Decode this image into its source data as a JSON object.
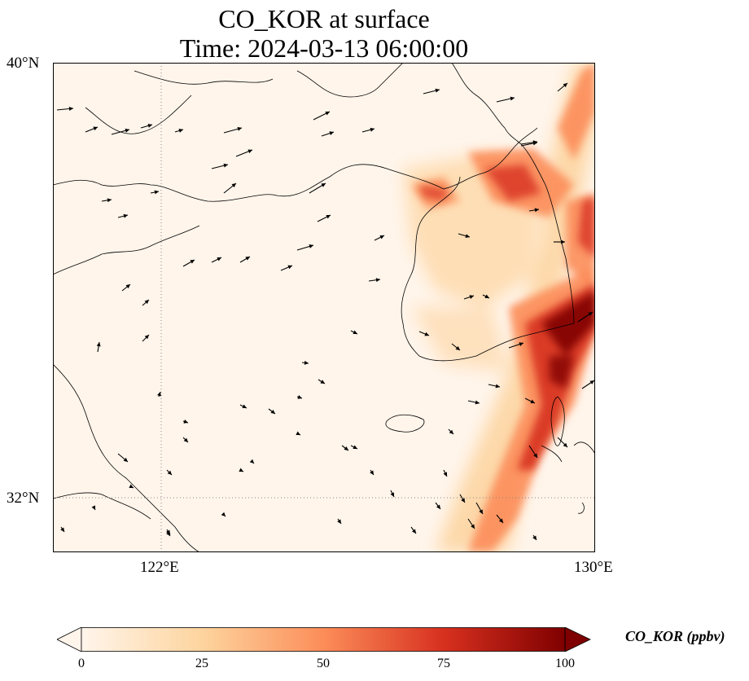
{
  "title": {
    "line1": "CO_KOR at surface",
    "line2": "Time: 2024-03-13 06:00:00"
  },
  "map": {
    "lat_labels": [
      "40°N",
      "32°N"
    ],
    "lon_labels": [
      "122°E",
      "130°E"
    ],
    "lat_range": [
      31,
      40
    ],
    "lon_range": [
      120,
      130
    ],
    "gridlines": "dotted at 122°E and 32°N",
    "background_color": "#fff5eb",
    "coastline_color": "#000000",
    "wind_vectors": "black arrows, generally westerly to southwesterly"
  },
  "colorbar": {
    "label": "CO_KOR (ppbv)",
    "ticks": [
      "0",
      "25",
      "50",
      "75",
      "100"
    ],
    "range": [
      0,
      100
    ],
    "colormap": "OrRd",
    "colors": [
      "#fff5eb",
      "#fdd49e",
      "#fc8d59",
      "#d7301f",
      "#7f0000"
    ],
    "extend": "both"
  }
}
